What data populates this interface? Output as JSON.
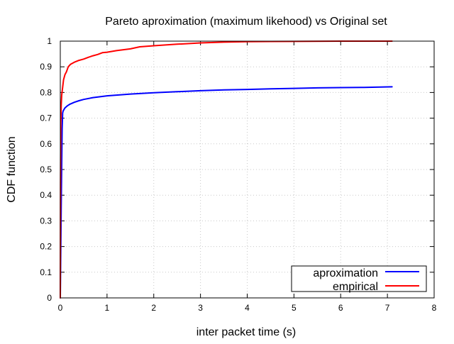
{
  "chart_data": {
    "type": "line",
    "title": "Pareto aproximation (maximum likehood) vs Original set",
    "xlabel": "inter packet time (s)",
    "ylabel": "CDF function",
    "xlim": [
      0,
      8
    ],
    "ylim": [
      0,
      1
    ],
    "xticks": [
      "0",
      "1",
      "2",
      "3",
      "4",
      "5",
      "6",
      "7",
      "8"
    ],
    "yticks": [
      "0",
      "0.1",
      "0.2",
      "0.3",
      "0.4",
      "0.5",
      "0.6",
      "0.7",
      "0.8",
      "0.9",
      "1"
    ],
    "grid": true,
    "legend_position": "bottom-right",
    "series": [
      {
        "name": "aproximation",
        "color": "#0000ff",
        "x": [
          0,
          0.02,
          0.04,
          0.05,
          0.06,
          0.08,
          0.1,
          0.15,
          0.2,
          0.3,
          0.4,
          0.5,
          0.7,
          1.0,
          1.5,
          2.0,
          2.5,
          3.0,
          3.5,
          4.0,
          4.5,
          5.0,
          5.5,
          6.0,
          6.5,
          7.1
        ],
        "y": [
          0,
          0.36,
          0.66,
          0.72,
          0.728,
          0.734,
          0.74,
          0.748,
          0.754,
          0.762,
          0.768,
          0.773,
          0.78,
          0.787,
          0.794,
          0.799,
          0.803,
          0.807,
          0.81,
          0.812,
          0.814,
          0.816,
          0.818,
          0.819,
          0.82,
          0.822
        ]
      },
      {
        "name": "empirical",
        "color": "#ff0000",
        "x": [
          0,
          0.005,
          0.01,
          0.02,
          0.03,
          0.05,
          0.07,
          0.1,
          0.13,
          0.17,
          0.22,
          0.3,
          0.4,
          0.5,
          0.6,
          0.7,
          0.8,
          0.9,
          1.0,
          1.2,
          1.5,
          1.7,
          2.0,
          2.5,
          3.0,
          3.5,
          4.0,
          5.0,
          6.0,
          7.1
        ],
        "y": [
          0,
          0.45,
          0.68,
          0.75,
          0.79,
          0.82,
          0.85,
          0.87,
          0.88,
          0.9,
          0.91,
          0.918,
          0.925,
          0.93,
          0.937,
          0.943,
          0.948,
          0.955,
          0.957,
          0.963,
          0.97,
          0.978,
          0.982,
          0.988,
          0.993,
          0.996,
          0.998,
          0.999,
          1.0,
          1.0
        ]
      }
    ]
  }
}
